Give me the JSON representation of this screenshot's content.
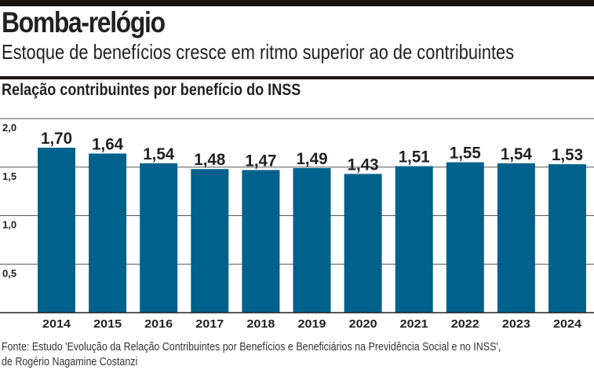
{
  "header": {
    "title": "Bomba-relógio",
    "subtitle": "Estoque de benefícios cresce em ritmo superior ao de contribuintes",
    "section_title": "Relação contribuintes por benefício do INSS"
  },
  "chart_data": {
    "type": "bar",
    "title": "Relação contribuintes por benefício do INSS",
    "categories": [
      "2014",
      "2015",
      "2016",
      "2017",
      "2018",
      "2019",
      "2020",
      "2021",
      "2022",
      "2023",
      "2024"
    ],
    "values": [
      1.7,
      1.64,
      1.54,
      1.48,
      1.47,
      1.49,
      1.43,
      1.51,
      1.55,
      1.54,
      1.53
    ],
    "value_labels": [
      "1,70",
      "1,64",
      "1,54",
      "1,48",
      "1,47",
      "1,49",
      "1,43",
      "1,51",
      "1,55",
      "1,54",
      "1,53"
    ],
    "yticks": [
      0.5,
      1.0,
      1.5,
      2.0
    ],
    "ytick_labels": [
      "0,5",
      "1,0",
      "1,5",
      "2,0"
    ],
    "ylim": [
      0,
      2.0
    ],
    "xlabel": "",
    "ylabel": "",
    "grid": true,
    "bar_color": "#00628c"
  },
  "source": {
    "line1": "Fonte: Estudo 'Evolução da Relação Contribuintes por Benefícios e Beneficiários na Previdência Social e no INSS',",
    "line2": "de Rogério Nagamine Costanzi"
  }
}
